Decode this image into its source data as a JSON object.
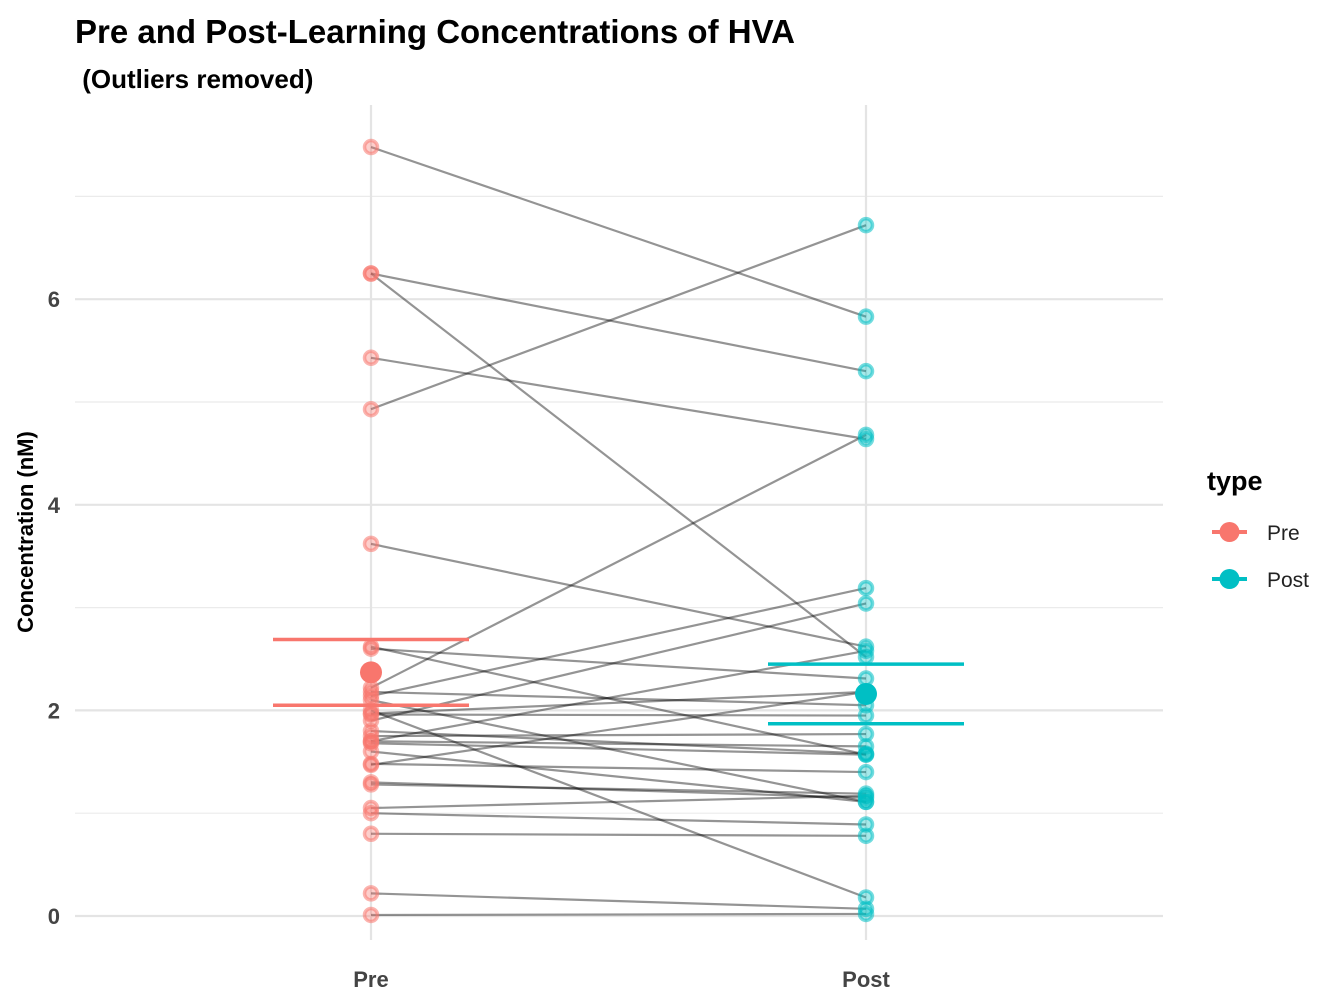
{
  "chart_data": {
    "type": "scatter",
    "title": "Pre and Post-Learning Concentrations of HVA",
    "subtitle": " (Outliers removed)",
    "xlabel": "",
    "ylabel": "Concentration (nM)",
    "categories": [
      "Pre",
      "Post"
    ],
    "ylim": [
      -0.15,
      7.6
    ],
    "y_ticks": [
      0,
      2,
      4,
      6
    ],
    "grid": true,
    "legend": {
      "title": "type",
      "position": "right",
      "entries": [
        {
          "label": "Pre",
          "color": "#F8766D"
        },
        {
          "label": "Post",
          "color": "#00BFC4"
        }
      ]
    },
    "pairs": [
      [
        7.48,
        5.83
      ],
      [
        6.25,
        5.3
      ],
      [
        6.25,
        2.52
      ],
      [
        5.43,
        4.64
      ],
      [
        4.93,
        6.72
      ],
      [
        3.62,
        2.62
      ],
      [
        2.6,
        2.31
      ],
      [
        2.62,
        1.57
      ],
      [
        2.22,
        4.68
      ],
      [
        2.18,
        2.05
      ],
      [
        2.14,
        3.19
      ],
      [
        2.1,
        1.11
      ],
      [
        2.0,
        0.18
      ],
      [
        1.97,
        2.18
      ],
      [
        1.96,
        1.95
      ],
      [
        1.9,
        3.04
      ],
      [
        1.8,
        1.58
      ],
      [
        1.75,
        1.77
      ],
      [
        1.7,
        2.58
      ],
      [
        1.7,
        1.65
      ],
      [
        1.68,
        1.57
      ],
      [
        1.6,
        1.11
      ],
      [
        1.48,
        1.4
      ],
      [
        1.47,
        2.18
      ],
      [
        1.3,
        1.15
      ],
      [
        1.28,
        1.19
      ],
      [
        1.05,
        1.17
      ],
      [
        1.0,
        0.89
      ],
      [
        0.8,
        0.78
      ],
      [
        0.22,
        0.07
      ],
      [
        0.01,
        0.02
      ]
    ],
    "summary": [
      {
        "type": "Pre",
        "mean": 2.37,
        "lower": 2.05,
        "upper": 2.69
      },
      {
        "type": "Post",
        "mean": 2.16,
        "lower": 1.87,
        "upper": 2.45
      }
    ]
  }
}
